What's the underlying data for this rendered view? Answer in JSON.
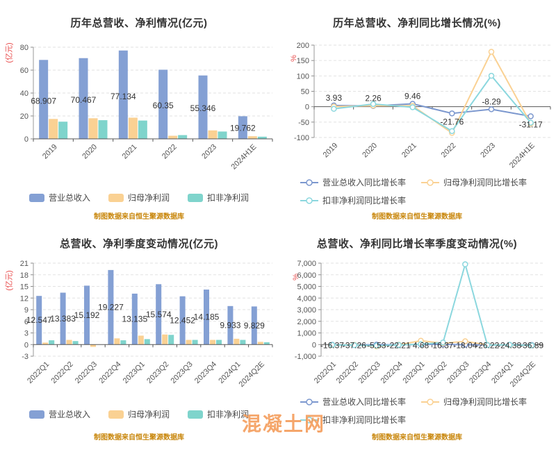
{
  "page": {
    "watermark": "混凝土网",
    "background": "#FFFFFF"
  },
  "colors": {
    "bar_blue": "#84A0D4",
    "bar_orange": "#FAD193",
    "bar_teal": "#7FD4CC",
    "line_blue": "#7B97CE",
    "line_orange": "#FAD193",
    "line_teal": "#8BD7DE",
    "axis_unit_red": "#E84C4C",
    "source_note_orange": "#C8860B",
    "watermark_orange": "#F49D5C",
    "title_gray": "#333333"
  },
  "chart_data": [
    {
      "id": "yearly-revenue-profit-bar",
      "type": "bar",
      "title": "历年总营收、净利情况(亿元)",
      "unit_label": "(亿元)",
      "source_note": "制图数据来自恒生聚源数据库",
      "legend_position": "bottom-center",
      "grid": true,
      "categories": [
        "2019",
        "2020",
        "2021",
        "2022",
        "2023",
        "2024H1E"
      ],
      "ylim": [
        0,
        80
      ],
      "y_ticks": [
        0,
        20,
        40,
        60,
        80
      ],
      "series": [
        {
          "name": "营业总收入",
          "color": "#84A0D4",
          "values": [
            68.907,
            70.467,
            77.134,
            60.35,
            55.346,
            19.762
          ],
          "labels": [
            "68.907",
            "70.467",
            "77.134",
            "60.35",
            "55.346",
            "19.762"
          ]
        },
        {
          "name": "归母净利润",
          "color": "#FAD193",
          "values": [
            17.4,
            18.0,
            18.5,
            2.7,
            7.4,
            2.3
          ]
        },
        {
          "name": "扣非净利润",
          "color": "#7FD4CC",
          "values": [
            15.0,
            16.3,
            16.0,
            3.3,
            6.4,
            1.9
          ]
        }
      ]
    },
    {
      "id": "yearly-growth-line",
      "type": "line",
      "title": "历年总营收、净利同比增长情况(%)",
      "unit_label": "%",
      "source_note": "制图数据来自恒生聚源数据库",
      "legend_position": "bottom-left-two-rows",
      "grid": true,
      "categories": [
        "2019",
        "2020",
        "2021",
        "2022",
        "2023",
        "2024H1E"
      ],
      "ylim": [
        -100,
        200
      ],
      "y_ticks": [
        -100,
        -50,
        0,
        50,
        100,
        150,
        200
      ],
      "series": [
        {
          "name": "营业总收入同比增长率",
          "color": "#7B97CE",
          "values": [
            3.93,
            2.26,
            9.46,
            -21.76,
            -8.29,
            -31.17
          ],
          "labels": [
            "3.93",
            "2.26",
            "9.46",
            "-21.76",
            "-8.29",
            "-31.17"
          ],
          "label_offsets": [
            "above",
            "above",
            "above",
            "below",
            "above",
            "below"
          ]
        },
        {
          "name": "归母净利润同比增长率",
          "color": "#FAD193",
          "values": [
            0.5,
            3.4,
            2.8,
            -85.4,
            178.3,
            -55.0
          ]
        },
        {
          "name": "扣非净利润同比增长率",
          "color": "#8BD7DE",
          "values": [
            -7.0,
            8.7,
            -1.8,
            -79.4,
            100.4,
            -52.0
          ]
        }
      ]
    },
    {
      "id": "quarterly-revenue-profit-bar",
      "type": "bar",
      "title": "总营收、净利季度变动情况(亿元)",
      "unit_label": "(亿元)",
      "source_note": "制图数据来自恒生聚源数据库",
      "legend_position": "bottom-center",
      "grid": true,
      "categories": [
        "2022Q1",
        "2022Q2",
        "2022Q3",
        "2022Q4",
        "2023Q1",
        "2023Q2",
        "2023Q3",
        "2023Q4",
        "2024Q1",
        "2024Q2E"
      ],
      "ylim": [
        -3,
        21
      ],
      "y_ticks": [
        -3,
        0,
        3,
        6,
        9,
        12,
        15,
        18,
        21
      ],
      "series": [
        {
          "name": "营业总收入",
          "color": "#84A0D4",
          "values": [
            12.547,
            13.383,
            15.192,
            19.227,
            13.135,
            15.574,
            12.452,
            14.185,
            9.933,
            9.829
          ],
          "labels": [
            "12.547",
            "13.383",
            "15.192",
            "19.227",
            "13.135",
            "15.574",
            "12.452",
            "14.185",
            "9.933",
            "9.829"
          ]
        },
        {
          "name": "归母净利润",
          "color": "#FAD193",
          "values": [
            0.5,
            1.2,
            -0.6,
            1.6,
            2.3,
            2.6,
            1.2,
            1.2,
            1.5,
            0.7
          ]
        },
        {
          "name": "扣非净利润",
          "color": "#7FD4CC",
          "values": [
            1.1,
            0.9,
            0.02,
            1.1,
            1.4,
            2.5,
            1.2,
            1.2,
            1.2,
            0.6
          ]
        }
      ]
    },
    {
      "id": "quarterly-growth-line",
      "type": "line",
      "title": "总营收、净利同比增长率季度变动情况(%)",
      "unit_label": "%",
      "source_note": "制图数据来自恒生聚源数据库",
      "legend_position": "bottom-left-two-rows",
      "grid": true,
      "y_tick_format": "thousands",
      "categories": [
        "2022Q1",
        "2022Q2",
        "2022Q3",
        "2022Q4",
        "2023Q1",
        "2023Q2",
        "2023Q3",
        "2023Q4",
        "2024Q1",
        "2024Q2E"
      ],
      "ylim": [
        -1000,
        7000
      ],
      "y_ticks": [
        -1000,
        0,
        1000,
        2000,
        3000,
        4000,
        5000,
        6000,
        7000
      ],
      "series": [
        {
          "name": "营业总收入同比增长率",
          "color": "#7B97CE",
          "values": [
            -16.37,
            -37.26,
            -5.53,
            -22.21,
            4.68,
            16.37,
            -18.04,
            -26.22,
            -24.38,
            -36.89
          ],
          "labels": [
            "-16.37",
            "-37.26",
            "-5.53",
            "-22.21",
            "4.68",
            "16.37",
            "-18.04",
            "-26.22",
            "-24.38",
            "-36.89"
          ],
          "label_offsets": [
            "zero",
            "zero",
            "zero",
            "zero",
            "zero",
            "zero",
            "zero",
            "zero",
            "zero",
            "zero"
          ]
        },
        {
          "name": "归母净利润同比增长率",
          "color": "#FAD193",
          "values": [
            -45,
            -25,
            -160,
            -15,
            330,
            115,
            280,
            -25,
            -35,
            -73
          ]
        },
        {
          "name": "扣非净利润同比增长率",
          "color": "#8BD7DE",
          "values": [
            -30,
            -55,
            -98,
            -35,
            27,
            180,
            6900,
            -45,
            -20,
            -75
          ]
        }
      ]
    }
  ]
}
